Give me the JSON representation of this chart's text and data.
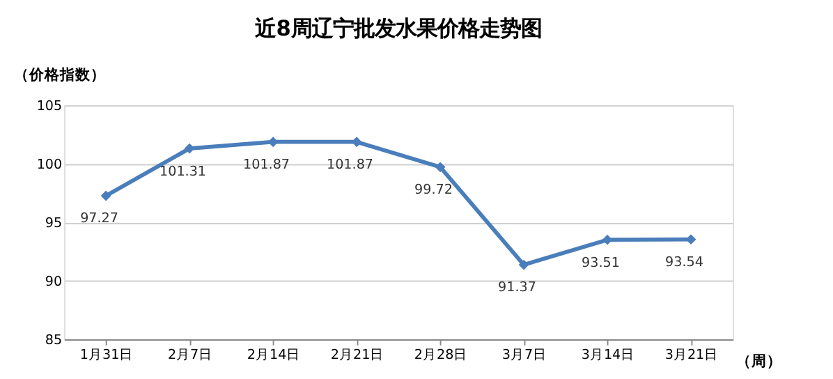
{
  "chart_data": {
    "type": "line",
    "title": "近8周辽宁批发水果价格走势图",
    "xlabel": "（周）",
    "ylabel": "（价格指数）",
    "categories": [
      "1月31日",
      "2月7日",
      "2月14日",
      "2月21日",
      "2月28日",
      "3月7日",
      "3月14日",
      "3月21日"
    ],
    "series": [
      {
        "color": "#4a7ebb",
        "values": [
          97.27,
          101.31,
          101.87,
          101.87,
          99.72,
          91.37,
          93.51,
          93.54
        ]
      }
    ],
    "ylim": [
      85,
      105
    ],
    "yticks": [
      85,
      90,
      95,
      100,
      105
    ],
    "grid": "y",
    "marker": "diamond",
    "line_style": "solid",
    "data_labels": true
  }
}
